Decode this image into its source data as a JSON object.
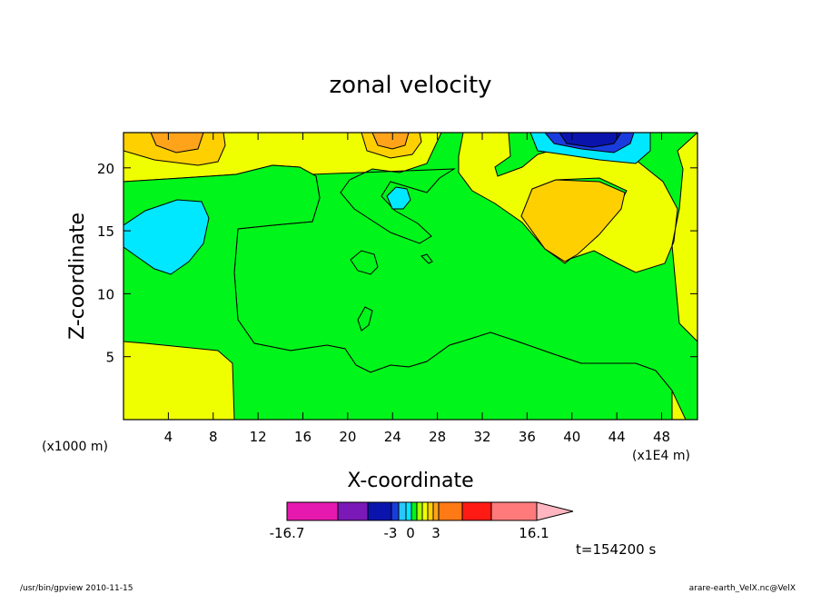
{
  "footer": {
    "left": "/usr/bin/gpview   2010-11-15",
    "right": "arare-earth_VelX.nc@VelX"
  },
  "chart_data": {
    "type": "heatmap",
    "title": "zonal velocity",
    "xlabel": "X-coordinate",
    "ylabel": "Z-coordinate",
    "x_unit_note": "(x1E4 m)",
    "y_unit_note": "(x1000 m)",
    "xlim": [
      0,
      51.2
    ],
    "ylim": [
      0,
      22.8
    ],
    "x_ticks": [
      4,
      8,
      12,
      16,
      20,
      24,
      28,
      32,
      36,
      40,
      44,
      48
    ],
    "y_ticks": [
      5,
      10,
      15,
      20
    ],
    "time_label": "t=154200 s",
    "colorbar": {
      "labels": [
        {
          "text": "-16.7",
          "value": -16.7
        },
        {
          "text": "-3",
          "value": -3
        },
        {
          "text": "0",
          "value": 0
        },
        {
          "text": "3",
          "value": 3
        },
        {
          "text": "16.1",
          "value": 16.1
        }
      ],
      "colors": [
        "#e619ae",
        "#7a19b8",
        "#0a14ad",
        "#1a3cdc",
        "#28c8ff",
        "#00e8ff",
        "#00f51a",
        "#a8ff00",
        "#f0ff00",
        "#ffd000",
        "#ffa31a",
        "#ff7a14",
        "#ff1a14",
        "#ff7a7a",
        "#ffb6c1"
      ]
    },
    "field_colors": {
      "strong_neg": "#0a14ad",
      "mid_neg": "#1a3cdc",
      "weak_neg": "#00e8ff",
      "near_zero_neg": "#00f51a",
      "near_zero_pos": "#f0ff00",
      "weak_pos": "#ffd000",
      "mid_pos": "#ffa31a"
    }
  }
}
